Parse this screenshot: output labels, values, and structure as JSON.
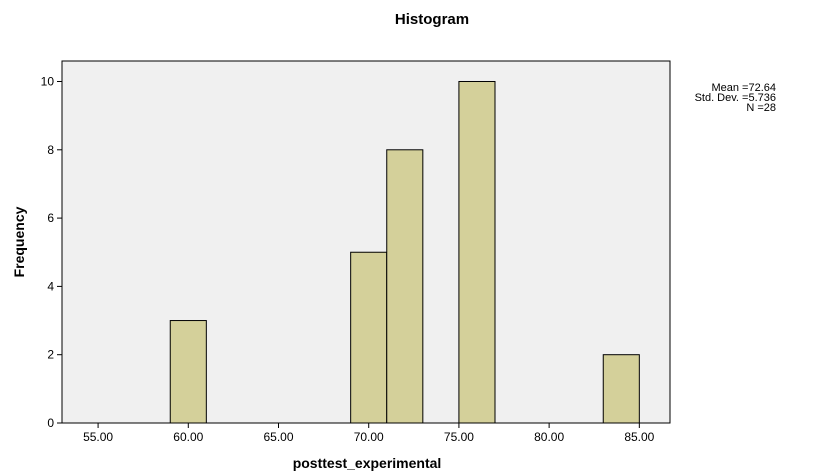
{
  "chart_data": {
    "type": "bar",
    "title": "Histogram",
    "xlabel": "posttest_experimental",
    "ylabel": "Frequency",
    "x_ticks": [
      "55.00",
      "60.00",
      "65.00",
      "70.00",
      "75.00",
      "80.00",
      "85.00"
    ],
    "y_ticks": [
      "0",
      "2",
      "4",
      "6",
      "8",
      "10"
    ],
    "xlim": [
      53,
      86.7
    ],
    "ylim": [
      0,
      10.6
    ],
    "bins": [
      {
        "start": 59.0,
        "end": 61.0,
        "value": 3
      },
      {
        "start": 69.0,
        "end": 71.0,
        "value": 5
      },
      {
        "start": 71.0,
        "end": 73.0,
        "value": 8
      },
      {
        "start": 75.0,
        "end": 77.0,
        "value": 10
      },
      {
        "start": 83.0,
        "end": 85.0,
        "value": 2
      }
    ],
    "bar_color": "#d4d09a",
    "plot_background": "#f0f0f0",
    "grid": false,
    "legend_position": "right",
    "stats": [
      "Mean =72.64",
      "Std. Dev. =5.736",
      "N =28"
    ]
  }
}
